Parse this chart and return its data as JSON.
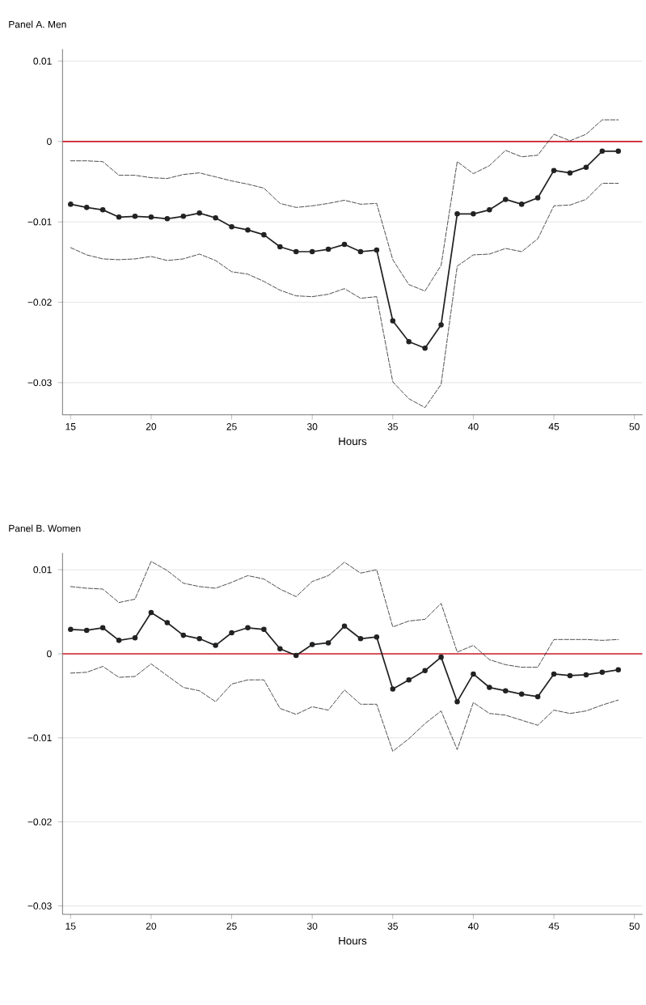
{
  "chart_data": [
    {
      "type": "line",
      "title": "Panel A. Men",
      "xlabel": "Hours",
      "x": [
        15,
        16,
        17,
        18,
        19,
        20,
        21,
        22,
        23,
        24,
        25,
        26,
        27,
        28,
        29,
        30,
        31,
        32,
        33,
        34,
        35,
        36,
        37,
        38,
        39,
        40,
        41,
        42,
        43,
        44,
        45,
        46,
        47,
        48,
        49
      ],
      "series": [
        {
          "color": "#222222",
          "marker": "circle",
          "line_style": "solid",
          "values": [
            -0.0078,
            -0.0082,
            -0.0085,
            -0.0094,
            -0.0093,
            -0.0094,
            -0.0096,
            -0.0093,
            -0.0089,
            -0.0095,
            -0.0106,
            -0.011,
            -0.0116,
            -0.0131,
            -0.0137,
            -0.0137,
            -0.0134,
            -0.0128,
            -0.0137,
            -0.0135,
            -0.0223,
            -0.0249,
            -0.0257,
            -0.0228,
            -0.009,
            -0.009,
            -0.0085,
            -0.0072,
            -0.0078,
            -0.007,
            -0.0036,
            -0.0039,
            -0.0032,
            -0.0012,
            -0.0012
          ]
        },
        {
          "color": "#222222",
          "marker": "none",
          "line_style": "dashed",
          "values": [
            -0.0024,
            -0.0024,
            -0.0025,
            -0.0042,
            -0.0042,
            -0.0045,
            -0.0046,
            -0.0041,
            -0.0039,
            -0.0044,
            -0.0049,
            -0.0053,
            -0.0058,
            -0.0077,
            -0.0082,
            -0.008,
            -0.0077,
            -0.0073,
            -0.0078,
            -0.0077,
            -0.0147,
            -0.0178,
            -0.0186,
            -0.0154,
            -0.0025,
            -0.004,
            -0.003,
            -0.0011,
            -0.0019,
            -0.0017,
            0.0009,
            0.0001,
            0.0009,
            0.0027,
            0.0027
          ]
        },
        {
          "color": "#222222",
          "marker": "none",
          "line_style": "dashed",
          "values": [
            -0.0132,
            -0.0141,
            -0.0146,
            -0.0147,
            -0.0146,
            -0.0143,
            -0.0148,
            -0.0146,
            -0.014,
            -0.0148,
            -0.0162,
            -0.0165,
            -0.0174,
            -0.0185,
            -0.0192,
            -0.0193,
            -0.019,
            -0.0183,
            -0.0195,
            -0.0193,
            -0.0299,
            -0.032,
            -0.0331,
            -0.0302,
            -0.0155,
            -0.0141,
            -0.014,
            -0.0133,
            -0.0137,
            -0.0121,
            -0.008,
            -0.0079,
            -0.0072,
            -0.0052,
            -0.0052
          ]
        }
      ],
      "xlim": [
        14.5,
        50.5
      ],
      "xticks": [
        15,
        20,
        25,
        30,
        35,
        40,
        45,
        50
      ],
      "ylim": [
        -0.034,
        0.0115
      ],
      "yticks": [
        0.01,
        0,
        {
          "value": -0.01,
          "label": "−0.01"
        },
        {
          "value": -0.02,
          "label": "−0.02"
        },
        {
          "value": -0.03,
          "label": "−0.03"
        }
      ],
      "grid": "y",
      "ref_lines": [
        {
          "axis": "y",
          "value": 0,
          "color": "#cc1f2c"
        }
      ]
    },
    {
      "type": "line",
      "title": "Panel B. Women",
      "xlabel": "Hours",
      "x": [
        15,
        16,
        17,
        18,
        19,
        20,
        21,
        22,
        23,
        24,
        25,
        26,
        27,
        28,
        29,
        30,
        31,
        32,
        33,
        34,
        35,
        36,
        37,
        38,
        39,
        40,
        41,
        42,
        43,
        44,
        45,
        46,
        47,
        48,
        49
      ],
      "series": [
        {
          "color": "#222222",
          "marker": "circle",
          "line_style": "solid",
          "values": [
            0.0029,
            0.0028,
            0.0031,
            0.0016,
            0.0019,
            0.0049,
            0.0037,
            0.0022,
            0.0018,
            0.001,
            0.0025,
            0.0031,
            0.0029,
            0.0006,
            -0.0002,
            0.0011,
            0.0013,
            0.0033,
            0.0018,
            0.002,
            -0.0042,
            -0.0031,
            -0.002,
            -0.0004,
            -0.0057,
            -0.0024,
            -0.004,
            -0.0044,
            -0.0048,
            -0.0051,
            -0.0024,
            -0.0026,
            -0.0025,
            -0.0022,
            -0.0019
          ]
        },
        {
          "color": "#222222",
          "marker": "none",
          "line_style": "dashed",
          "values": [
            0.008,
            0.0078,
            0.0077,
            0.0061,
            0.0065,
            0.011,
            0.0099,
            0.0084,
            0.008,
            0.0078,
            0.0085,
            0.0093,
            0.0089,
            0.0077,
            0.0068,
            0.0086,
            0.0093,
            0.0109,
            0.0096,
            0.01,
            0.0032,
            0.0039,
            0.0041,
            0.006,
            0.0002,
            0.001,
            -0.0007,
            -0.0013,
            -0.0016,
            -0.0016,
            0.0017,
            0.0017,
            0.0017,
            0.0016,
            0.0017
          ]
        },
        {
          "color": "#222222",
          "marker": "none",
          "line_style": "dashed",
          "values": [
            -0.0023,
            -0.0022,
            -0.0015,
            -0.0028,
            -0.0027,
            -0.0012,
            -0.0026,
            -0.004,
            -0.0044,
            -0.0057,
            -0.0036,
            -0.0031,
            -0.0031,
            -0.0065,
            -0.0072,
            -0.0063,
            -0.0067,
            -0.0043,
            -0.006,
            -0.006,
            -0.0116,
            -0.0101,
            -0.0083,
            -0.0068,
            -0.0114,
            -0.0058,
            -0.0071,
            -0.0073,
            -0.0079,
            -0.0085,
            -0.0067,
            -0.0071,
            -0.0068,
            -0.0061,
            -0.0055
          ]
        }
      ],
      "xlim": [
        14.5,
        50.5
      ],
      "xticks": [
        15,
        20,
        25,
        30,
        35,
        40,
        45,
        50
      ],
      "ylim": [
        -0.031,
        0.012
      ],
      "yticks": [
        0.01,
        0,
        {
          "value": -0.01,
          "label": "−0.01"
        },
        {
          "value": -0.02,
          "label": "−0.02"
        },
        {
          "value": -0.03,
          "label": "−0.03"
        }
      ],
      "grid": "y",
      "ref_lines": [
        {
          "axis": "y",
          "value": 0,
          "color": "#cc1f2c"
        }
      ]
    }
  ]
}
